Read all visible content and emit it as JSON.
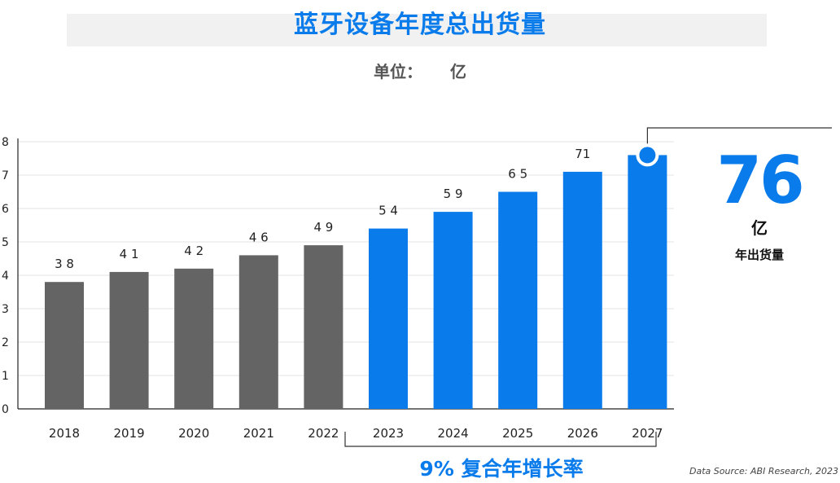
{
  "title": "蓝牙设备年度总出货量",
  "unit": {
    "label": "单位：",
    "value": "亿"
  },
  "callout": {
    "value": "76",
    "unit": "亿",
    "caption": "年出货量"
  },
  "cagr_label": "9% 复合年增长率",
  "source": "Data Source: ABI Research, 2023",
  "colors": {
    "historical": "#646464",
    "forecast": "#0a7bea",
    "grid": "#e3e3e3",
    "axis": "#222222"
  },
  "chart_data": {
    "type": "bar",
    "title": "蓝牙设备年度总出货量",
    "xlabel": "",
    "ylabel": "",
    "categories": [
      "2018",
      "2019",
      "2020",
      "2021",
      "2022",
      "2023",
      "2024",
      "2025",
      "2026",
      "2027"
    ],
    "values": [
      38,
      41,
      42,
      46,
      49,
      54,
      59,
      65,
      71,
      76
    ],
    "value_labels": [
      "3 8",
      "4 1",
      "4 2",
      "4 6",
      "4 9",
      "5 4",
      "5 9",
      "6 5",
      "71",
      ""
    ],
    "forecast_from_index": 5,
    "y_ticks": [
      "0",
      "1",
      "2",
      "3",
      "4",
      "5",
      "6",
      "7",
      "8"
    ],
    "tick_scale": 10,
    "ylim": [
      0,
      80
    ],
    "grid": true
  }
}
